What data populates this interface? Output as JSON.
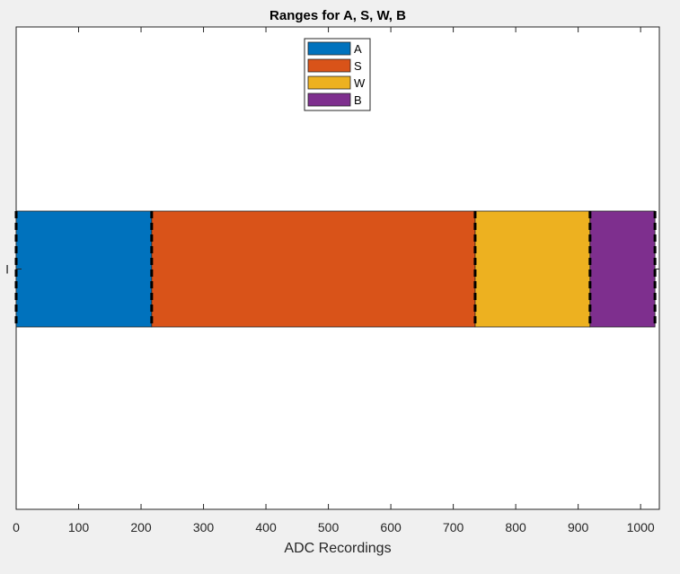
{
  "chart_data": {
    "type": "bar",
    "orientation": "horizontal-stacked",
    "title": "Ranges for A, S, W, B",
    "xlabel": "ADC Recordings",
    "ylabel": "",
    "xlim": [
      0,
      1030
    ],
    "xticks": [
      0,
      100,
      200,
      300,
      400,
      500,
      600,
      700,
      800,
      900,
      1000
    ],
    "xtick_labels": [
      "0",
      "100",
      "200",
      "300",
      "400",
      "500",
      "600",
      "700",
      "800",
      "900",
      "1000"
    ],
    "categories": [
      "I"
    ],
    "series": [
      {
        "name": "A",
        "color": "#0072bd",
        "values": [
          217
        ]
      },
      {
        "name": "S",
        "color": "#d95319",
        "values": [
          518
        ]
      },
      {
        "name": "W",
        "color": "#edb120",
        "values": [
          184
        ]
      },
      {
        "name": "B",
        "color": "#7e2f8e",
        "values": [
          104
        ]
      }
    ],
    "boundaries": [
      0,
      217,
      735,
      919,
      1023
    ],
    "grid": false,
    "legend_position": "top-center"
  }
}
